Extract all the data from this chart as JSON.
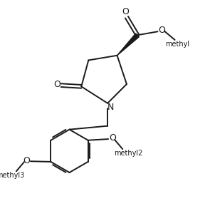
{
  "bg_color": "#ffffff",
  "line_color": "#1a1a1a",
  "lw": 1.4,
  "fig_width": 2.88,
  "fig_height": 3.03,
  "dpi": 100,
  "xlim": [
    -2.5,
    5.5
  ],
  "ylim": [
    -5.5,
    3.5
  ]
}
